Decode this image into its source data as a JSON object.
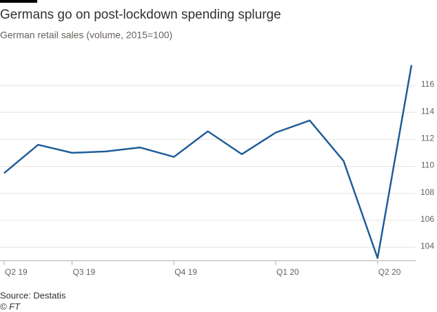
{
  "chart_data": {
    "type": "line",
    "title": "Germans go on post-lockdown spending splurge",
    "subtitle": "German retail sales (volume, 2015=100)",
    "source": "Source: Destatis",
    "credit": "© FT",
    "categories": [
      "Q2 19",
      null,
      "Q3 19",
      null,
      null,
      "Q4 19",
      null,
      null,
      "Q1 20",
      null,
      null,
      "Q2 20",
      null
    ],
    "series": [
      {
        "name": "Retail sales",
        "color": "#1f5c99",
        "values": [
          109.5,
          111.6,
          111.0,
          111.1,
          111.4,
          110.7,
          112.6,
          110.9,
          112.5,
          113.4,
          110.4,
          103.2,
          117.5
        ]
      }
    ],
    "ylim": [
      103,
      118.5
    ],
    "yticks": [
      104,
      106,
      108,
      110,
      112,
      114,
      116
    ],
    "grid": true
  }
}
